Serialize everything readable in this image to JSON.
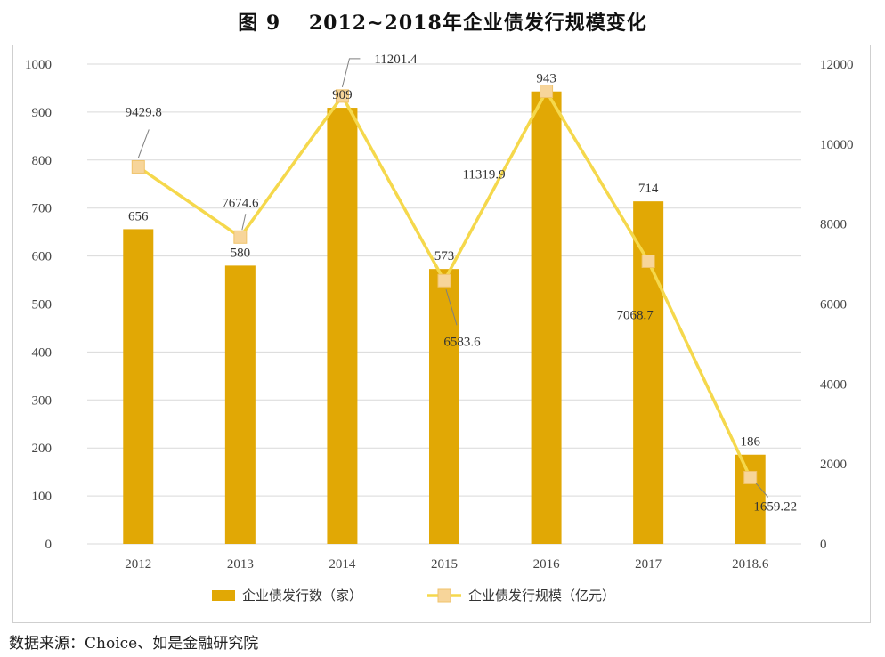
{
  "title": "图 9　 2012~2018年企业债发行规模变化",
  "source": "数据来源：Choice、如是金融研究院",
  "colors": {
    "bar": "#E1A805",
    "line": "#F5D84C",
    "marker": "#F7D59A",
    "grid": "#d9d9d9",
    "leader": "#7f7f7f"
  },
  "chart_data": {
    "type": "bar",
    "categories": [
      "2012",
      "2013",
      "2014",
      "2015",
      "2016",
      "2017",
      "2018.6"
    ],
    "series": [
      {
        "name": "企业债发行数（家）",
        "type": "bar",
        "axis": "left",
        "values": [
          656,
          580,
          909,
          573,
          943,
          714,
          186
        ],
        "labels": [
          "656",
          "580",
          "909",
          "573",
          "943",
          "714",
          "186"
        ]
      },
      {
        "name": "企业债发行规模（亿元）",
        "type": "line",
        "axis": "right",
        "values": [
          9429.8,
          7674.6,
          11201.4,
          6583.6,
          11319.9,
          7068.7,
          1659.22
        ],
        "labels": [
          "9429.8",
          "7674.6",
          "11201.4",
          "6583.6",
          "11319.9",
          "7068.7",
          "1659.22"
        ]
      }
    ],
    "y_left": {
      "min": 0,
      "max": 1000,
      "ticks": [
        "0",
        "100",
        "200",
        "300",
        "400",
        "500",
        "600",
        "700",
        "800",
        "900",
        "1000"
      ]
    },
    "y_right": {
      "min": 0,
      "max": 12000,
      "ticks": [
        "0",
        "2000",
        "4000",
        "6000",
        "8000",
        "10000",
        "12000"
      ]
    },
    "grid": true,
    "legend": "bottom"
  }
}
